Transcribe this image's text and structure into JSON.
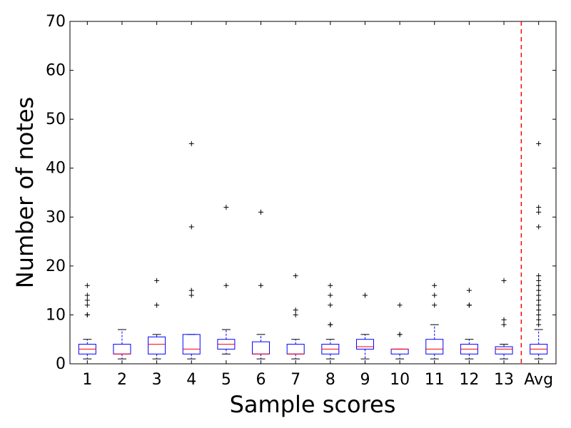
{
  "chart_data": {
    "type": "box",
    "xlabel": "Sample scores",
    "ylabel": "Number of notes",
    "ylim": [
      0,
      70
    ],
    "yticks": [
      0,
      10,
      20,
      30,
      40,
      50,
      60,
      70
    ],
    "grid": false,
    "categories": [
      "1",
      "2",
      "3",
      "4",
      "5",
      "6",
      "7",
      "8",
      "9",
      "10",
      "11",
      "12",
      "13",
      "Avg"
    ],
    "boxes": [
      {
        "category": "1",
        "whisker_low": 1,
        "q1": 2,
        "median": 3,
        "q3": 4,
        "whisker_high": 5,
        "outliers": [
          10,
          10,
          12,
          13,
          14,
          16
        ]
      },
      {
        "category": "2",
        "whisker_low": 1,
        "q1": 2,
        "median": 2,
        "q3": 4,
        "whisker_high": 7,
        "outliers": []
      },
      {
        "category": "3",
        "whisker_low": 1,
        "q1": 2,
        "median": 4,
        "q3": 5.5,
        "whisker_high": 6,
        "outliers": [
          12,
          17
        ]
      },
      {
        "category": "4",
        "whisker_low": 1,
        "q1": 2,
        "median": 3,
        "q3": 6,
        "whisker_high": 6,
        "outliers": [
          14,
          15,
          28,
          45
        ]
      },
      {
        "category": "5",
        "whisker_low": 2,
        "q1": 3,
        "median": 4,
        "q3": 5,
        "whisker_high": 7,
        "outliers": [
          16,
          32
        ]
      },
      {
        "category": "6",
        "whisker_low": 1,
        "q1": 2,
        "median": 2,
        "q3": 4.5,
        "whisker_high": 6,
        "outliers": [
          16,
          31
        ]
      },
      {
        "category": "7",
        "whisker_low": 1,
        "q1": 2,
        "median": 2,
        "q3": 4,
        "whisker_high": 5,
        "outliers": [
          10,
          11,
          18
        ]
      },
      {
        "category": "8",
        "whisker_low": 1,
        "q1": 2,
        "median": 3,
        "q3": 4,
        "whisker_high": 5,
        "outliers": [
          8,
          8,
          12,
          14,
          16
        ]
      },
      {
        "category": "9",
        "whisker_low": 1,
        "q1": 3,
        "median": 3.5,
        "q3": 5,
        "whisker_high": 6,
        "outliers": [
          14
        ]
      },
      {
        "category": "10",
        "whisker_low": 1,
        "q1": 2,
        "median": 3,
        "q3": 3,
        "whisker_high": 3,
        "outliers": [
          6,
          6,
          12
        ]
      },
      {
        "category": "11",
        "whisker_low": 1,
        "q1": 2,
        "median": 3,
        "q3": 5,
        "whisker_high": 8,
        "outliers": [
          12,
          14,
          16
        ]
      },
      {
        "category": "12",
        "whisker_low": 1,
        "q1": 2,
        "median": 3,
        "q3": 4,
        "whisker_high": 5,
        "outliers": [
          12,
          12,
          15
        ]
      },
      {
        "category": "13",
        "whisker_low": 1,
        "q1": 2,
        "median": 3,
        "q3": 3.5,
        "whisker_high": 4,
        "outliers": [
          8,
          9,
          17
        ]
      },
      {
        "category": "Avg",
        "whisker_low": 1,
        "q1": 2,
        "median": 3,
        "q3": 4,
        "whisker_high": 7,
        "outliers": [
          8,
          9,
          10,
          11,
          12,
          13,
          14,
          15,
          16,
          17,
          18,
          28,
          31,
          32,
          45
        ]
      }
    ],
    "separator": {
      "after_category": "13",
      "style": "dashed",
      "color": "#ff0000"
    },
    "colors": {
      "box": "#0000ff",
      "median": "#ff0000",
      "whisker": "#000000",
      "outlier": "#000000",
      "separator": "#ff0000"
    }
  }
}
